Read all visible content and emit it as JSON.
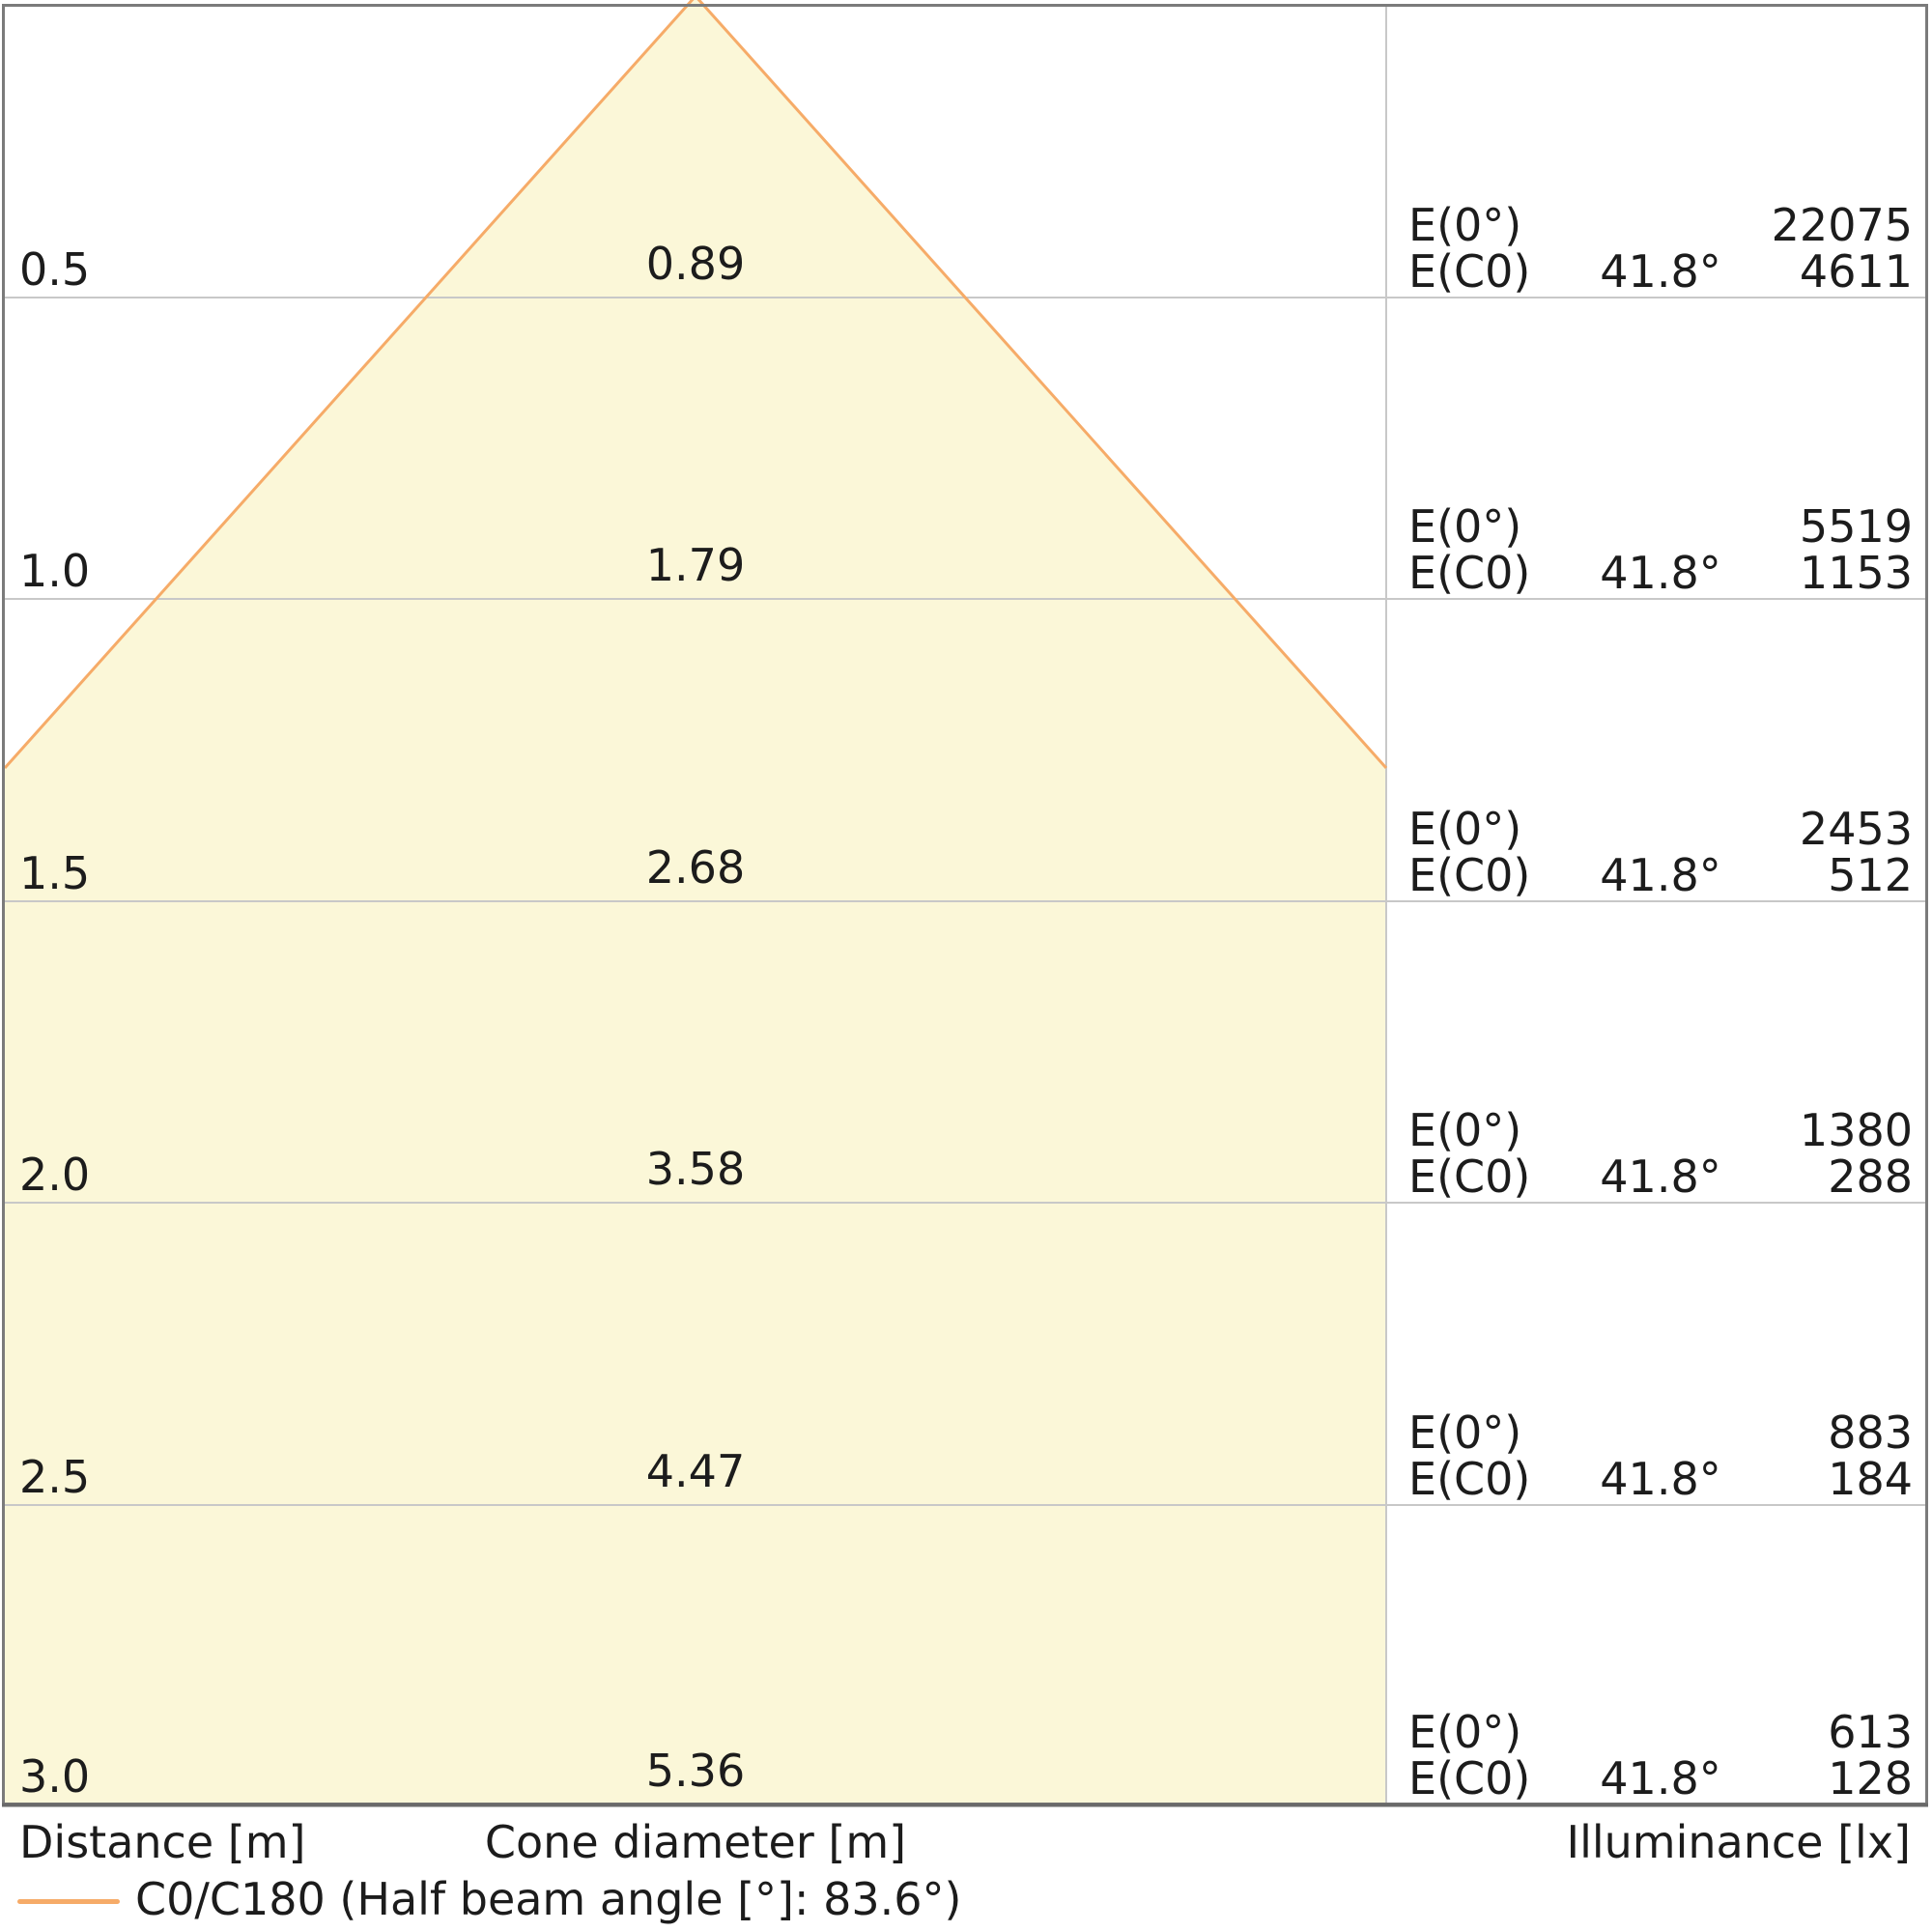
{
  "chart_data": {
    "type": "area",
    "subtype": "light-cone-diagram",
    "title": "",
    "footer": {
      "distance": "Distance [m]",
      "cone_diameter": "Cone diameter [m]",
      "illuminance": "Illuminance [lx]"
    },
    "legend": {
      "label": "C0/C180 (Half beam angle [°]: 83.6°)",
      "position": "bottom-left"
    },
    "half_beam_angle_deg": 83.6,
    "axis": {
      "distance_m": [
        0.5,
        1.0,
        1.5,
        2.0,
        2.5,
        3.0
      ],
      "grid": true
    },
    "rows": [
      {
        "distance": "0.5",
        "cone_diameter": "0.89",
        "e0_label": "E(0°)",
        "ec0_label": "E(C0)",
        "angle": "41.8°",
        "e0_lx": "22075",
        "ec0_lx": "4611"
      },
      {
        "distance": "1.0",
        "cone_diameter": "1.79",
        "e0_label": "E(0°)",
        "ec0_label": "E(C0)",
        "angle": "41.8°",
        "e0_lx": "5519",
        "ec0_lx": "1153"
      },
      {
        "distance": "1.5",
        "cone_diameter": "2.68",
        "e0_label": "E(0°)",
        "ec0_label": "E(C0)",
        "angle": "41.8°",
        "e0_lx": "2453",
        "ec0_lx": "512"
      },
      {
        "distance": "2.0",
        "cone_diameter": "3.58",
        "e0_label": "E(0°)",
        "ec0_label": "E(C0)",
        "angle": "41.8°",
        "e0_lx": "1380",
        "ec0_lx": "288"
      },
      {
        "distance": "2.5",
        "cone_diameter": "4.47",
        "e0_label": "E(0°)",
        "ec0_label": "E(C0)",
        "angle": "41.8°",
        "e0_lx": "883",
        "ec0_lx": "184"
      },
      {
        "distance": "3.0",
        "cone_diameter": "5.36",
        "e0_label": "E(0°)",
        "ec0_label": "E(C0)",
        "angle": "41.8°",
        "e0_lx": "613",
        "ec0_lx": "128"
      }
    ],
    "colors": {
      "cone_fill": "#fbf7d8",
      "cone_edge": "#f6ab68",
      "grid": "#c8c8c8",
      "border": "#7b7b7b",
      "border_bottom": "#6a6a6a",
      "text": "#1c1c1c",
      "background": "#ffffff"
    }
  }
}
